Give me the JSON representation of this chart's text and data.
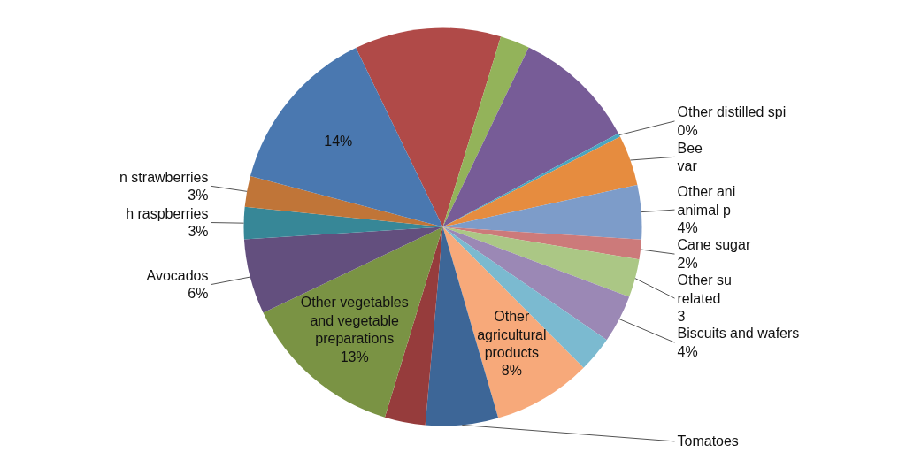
{
  "chart_data": {
    "type": "pie",
    "categories": [
      null,
      null,
      null,
      "Other distilled spi",
      "Bee\nvar",
      "Other ani\nanimal p",
      "Cane sugar",
      "Other su\nrelated",
      "Biscuits and wafers",
      null,
      "Other\nagricultural\nproducts",
      "Tomatoes",
      null,
      "Other vegetables\nand vegetable\npreparations",
      "Avocados",
      "h raspberries",
      "n strawberries",
      null
    ],
    "values": [
      11.9,
      2.4,
      10.1,
      0.3,
      4.1,
      4.4,
      1.6,
      3.1,
      3.9,
      2.9,
      8.0,
      5.9,
      3.3,
      13.2,
      6.1,
      2.6,
      2.5,
      13.7
    ],
    "value_labels": [
      null,
      null,
      null,
      "0%",
      null,
      "4%",
      "2%",
      "3",
      "4%",
      null,
      "8%",
      null,
      null,
      "13%",
      "6%",
      "3%",
      "3%",
      "14%"
    ],
    "colors": [
      "#b04a48",
      "#93b35a",
      "#775c97",
      "#4aa5c0",
      "#e68c3f",
      "#7d9cc9",
      "#cc7a7a",
      "#abc785",
      "#9b88b5",
      "#7bbad0",
      "#f7a97a",
      "#3d6697",
      "#963c3c",
      "#7a9344",
      "#634f7e",
      "#378797",
      "#c07538",
      "#4a78b0"
    ]
  }
}
